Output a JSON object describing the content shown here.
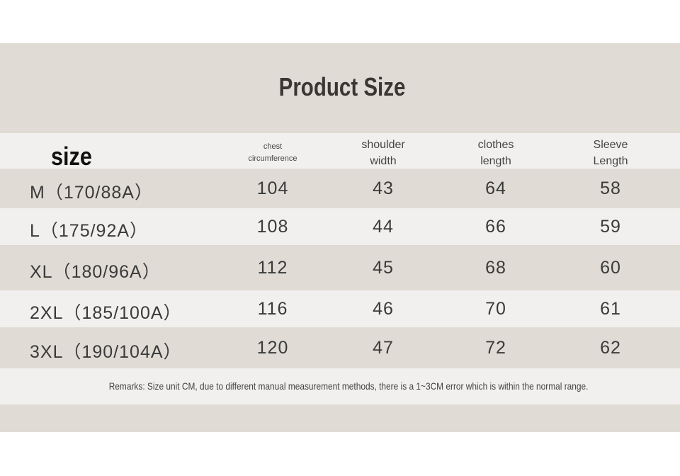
{
  "title": "Product Size",
  "table": {
    "header": [
      [
        "size"
      ],
      [
        "chest",
        "circumference"
      ],
      [
        "shoulder",
        "width"
      ],
      [
        "clothes",
        "length"
      ],
      [
        "Sleeve",
        "Length"
      ]
    ],
    "rows": [
      [
        "M（170/88A）",
        104,
        43,
        64,
        58
      ],
      [
        "L（175/92A）",
        108,
        44,
        66,
        59
      ],
      [
        "XL（180/96A）",
        112,
        45,
        68,
        60
      ],
      [
        "2XL（185/100A）",
        116,
        46,
        70,
        61
      ],
      [
        "3XL（190/104A）",
        120,
        47,
        72,
        62
      ]
    ]
  },
  "remark": "Remarks: Size unit CM, due to different manual measurement methods, there is a 1~3CM error which is within the normal range."
}
